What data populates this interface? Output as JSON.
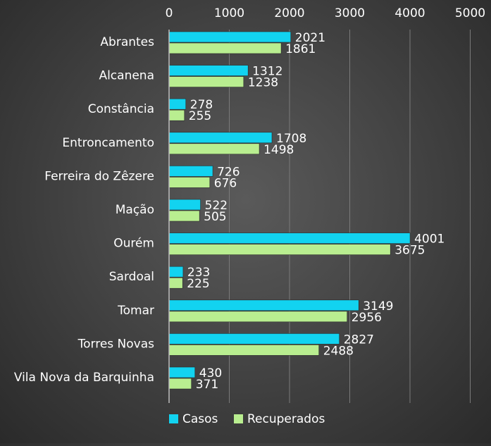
{
  "chart_data": {
    "type": "bar",
    "orientation": "horizontal",
    "categories": [
      "Abrantes",
      "Alcanena",
      "Constância",
      "Entroncamento",
      "Ferreira do Zêzere",
      "Mação",
      "Ourém",
      "Sardoal",
      "Tomar",
      "Torres Novas",
      "Vila Nova da Barquinha"
    ],
    "series": [
      {
        "name": "Casos",
        "values": [
          2021,
          1312,
          278,
          1708,
          726,
          522,
          4001,
          233,
          3149,
          2827,
          430
        ]
      },
      {
        "name": "Recuperados",
        "values": [
          1861,
          1238,
          255,
          1498,
          676,
          505,
          3675,
          225,
          2956,
          2488,
          371
        ]
      }
    ],
    "xlim": [
      0,
      5000
    ],
    "xticks": [
      "0",
      "1000",
      "2000",
      "3000",
      "4000",
      "5000"
    ],
    "axis_position": "top",
    "grid": true,
    "legend": "bottom",
    "title": "",
    "xlabel": "",
    "ylabel": ""
  },
  "colors": {
    "Casos": "#12d3f0",
    "Recuperados": "#b9ee90",
    "grid": "#7a7a7a",
    "axis": "#bdbdbd",
    "text": "#ffffff"
  }
}
